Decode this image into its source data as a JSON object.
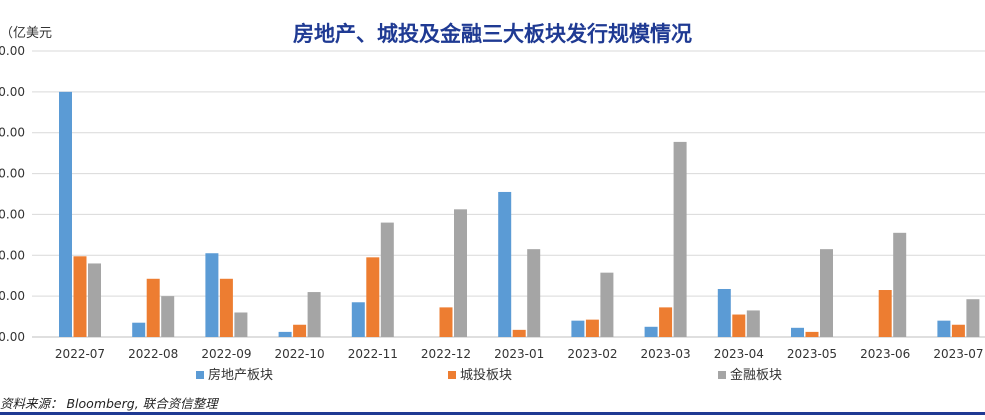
{
  "chart_data": {
    "type": "bar",
    "title": "房地产、城投及金融三大板块发行规模情况",
    "unit": "（亿美元",
    "ytick_labels": [
      "0.00",
      "0.00",
      "0.00",
      "0.00",
      "0.00",
      "0.00",
      "0.00",
      "0.00"
    ],
    "ylim": [
      0,
      140
    ],
    "categories": [
      "2022-07",
      "2022-08",
      "2022-09",
      "2022-10",
      "2022-11",
      "2022-12",
      "2023-01",
      "2023-02",
      "2023-03",
      "2023-04",
      "2023-05",
      "2023-06",
      "2023-07"
    ],
    "series": [
      {
        "name": "房地产板块",
        "color": "#5b9bd5",
        "values": [
          120,
          7,
          41,
          2.5,
          17,
          0,
          71,
          8,
          5,
          23.5,
          4.5,
          0,
          8
        ]
      },
      {
        "name": "城投板块",
        "color": "#ed7d31",
        "values": [
          39.5,
          28.5,
          28.5,
          6,
          39,
          14.5,
          3.5,
          8.5,
          14.5,
          11,
          2.5,
          23,
          6
        ]
      },
      {
        "name": "金融板块",
        "color": "#a5a5a5",
        "values": [
          36,
          20,
          12,
          22,
          56,
          62.5,
          43,
          31.5,
          95.5,
          13,
          43,
          51,
          18.5
        ]
      }
    ],
    "grid": true,
    "legend_position": "bottom"
  },
  "source": "资料来源：  Bloomberg, 联合资信整理"
}
